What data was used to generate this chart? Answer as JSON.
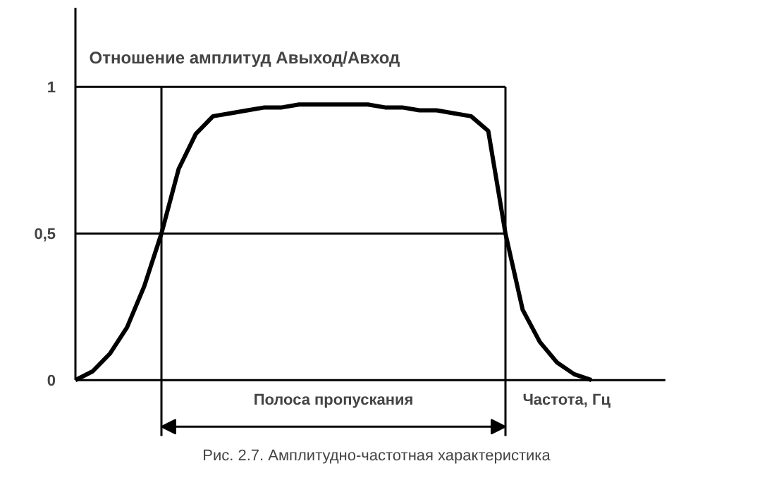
{
  "chart_data": {
    "type": "line",
    "ylabel": "Отношение амплитуд Aвыход/Aвход",
    "xlabel": "Частота, Гц",
    "categories": [
      null,
      null,
      null,
      null,
      null,
      null,
      null,
      null,
      null,
      null,
      null,
      null,
      null,
      null,
      null,
      null,
      null,
      null,
      null,
      null,
      null,
      null,
      null,
      null,
      null,
      null,
      null,
      null,
      null,
      null,
      null,
      null,
      null,
      null,
      null
    ],
    "series": [
      {
        "color": "#000000",
        "values": [
          0,
          0.03,
          0.09,
          0.18,
          0.32,
          0.5,
          0.72,
          0.84,
          0.9,
          0.91,
          0.92,
          0.93,
          0.93,
          0.94,
          0.94,
          0.94,
          0.94,
          0.94,
          0.93,
          0.93,
          0.92,
          0.92,
          0.91,
          0.9,
          0.85,
          0.5,
          0.24,
          0.13,
          0.06,
          0.02,
          0,
          null,
          null,
          null,
          null
        ]
      },
      {
        "color": "#000000",
        "values": [
          1,
          1,
          1,
          1,
          1,
          1,
          1,
          1,
          1,
          1,
          1,
          1,
          1,
          1,
          1,
          1,
          1,
          1,
          1,
          1,
          1,
          1,
          1,
          1,
          1,
          1,
          null,
          null,
          null,
          null,
          null,
          null,
          null,
          null,
          null
        ]
      },
      {
        "color": "#000000",
        "values": [
          0.5,
          0.5,
          0.5,
          0.5,
          0.5,
          0.5,
          0.5,
          0.5,
          0.5,
          0.5,
          0.5,
          0.5,
          0.5,
          0.5,
          0.5,
          0.5,
          0.5,
          0.5,
          0.5,
          0.5,
          0.5,
          0.5,
          0.5,
          0.5,
          0.5,
          0.5,
          null,
          null,
          null,
          null,
          null,
          null,
          null,
          null,
          null
        ]
      }
    ],
    "ylim": [
      0,
      1.27
    ],
    "yticks": [
      0,
      {
        "value": 0.5,
        "label": "0,5"
      },
      1
    ],
    "tick_labels": "y",
    "annotations": [
      "Полоса пропускания",
      "Рис. 2.7. Амплитудно-частотная характеристика"
    ]
  }
}
